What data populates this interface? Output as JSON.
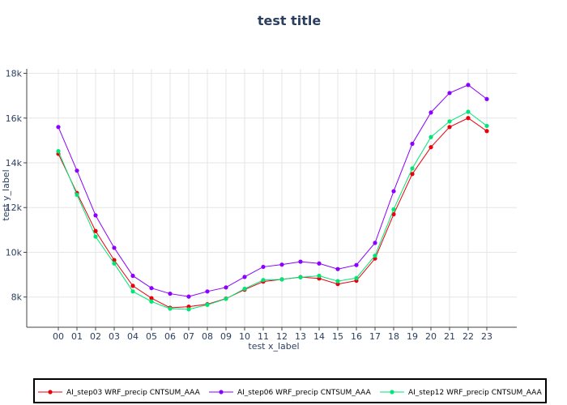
{
  "chart_data": {
    "type": "line",
    "title": "test title",
    "xlabel": "test x_label",
    "ylabel": "test y_label",
    "categories": [
      "00",
      "01",
      "02",
      "03",
      "04",
      "05",
      "06",
      "07",
      "08",
      "09",
      "10",
      "11",
      "12",
      "13",
      "14",
      "15",
      "16",
      "17",
      "18",
      "19",
      "20",
      "21",
      "22",
      "23"
    ],
    "y_tick_labels": [
      "8k",
      "10k",
      "12k",
      "14k",
      "16k",
      "18k"
    ],
    "y_tick_values": [
      8000,
      10000,
      12000,
      14000,
      16000,
      18000
    ],
    "ylim": [
      6650,
      18200
    ],
    "grid": true,
    "legend_position": "bottom",
    "series": [
      {
        "name": "AI_step03 WRF_precip CNTSUM_AAA",
        "color": "#e8000b",
        "values": [
          14400,
          12650,
          10950,
          9650,
          8500,
          7950,
          7520,
          7570,
          7680,
          7930,
          8330,
          8690,
          8790,
          8890,
          8830,
          8580,
          8730,
          9720,
          11700,
          13500,
          14700,
          15600,
          16000,
          15420
        ]
      },
      {
        "name": "AI_step06 WRF_precip CNTSUM_AAA",
        "color": "#8b00ff",
        "values": [
          15600,
          13650,
          11650,
          10200,
          8950,
          8400,
          8150,
          8020,
          8250,
          8430,
          8900,
          9350,
          9450,
          9580,
          9500,
          9250,
          9430,
          10420,
          12730,
          14850,
          16250,
          17120,
          17480,
          16850
        ]
      },
      {
        "name": "AI_step12 WRF_precip CNTSUM_AAA",
        "color": "#00e676",
        "values": [
          14520,
          12570,
          10700,
          9500,
          8250,
          7800,
          7480,
          7450,
          7650,
          7920,
          8370,
          8760,
          8790,
          8880,
          8950,
          8710,
          8850,
          9850,
          11920,
          13750,
          15150,
          15850,
          16280,
          15650
        ]
      }
    ]
  }
}
